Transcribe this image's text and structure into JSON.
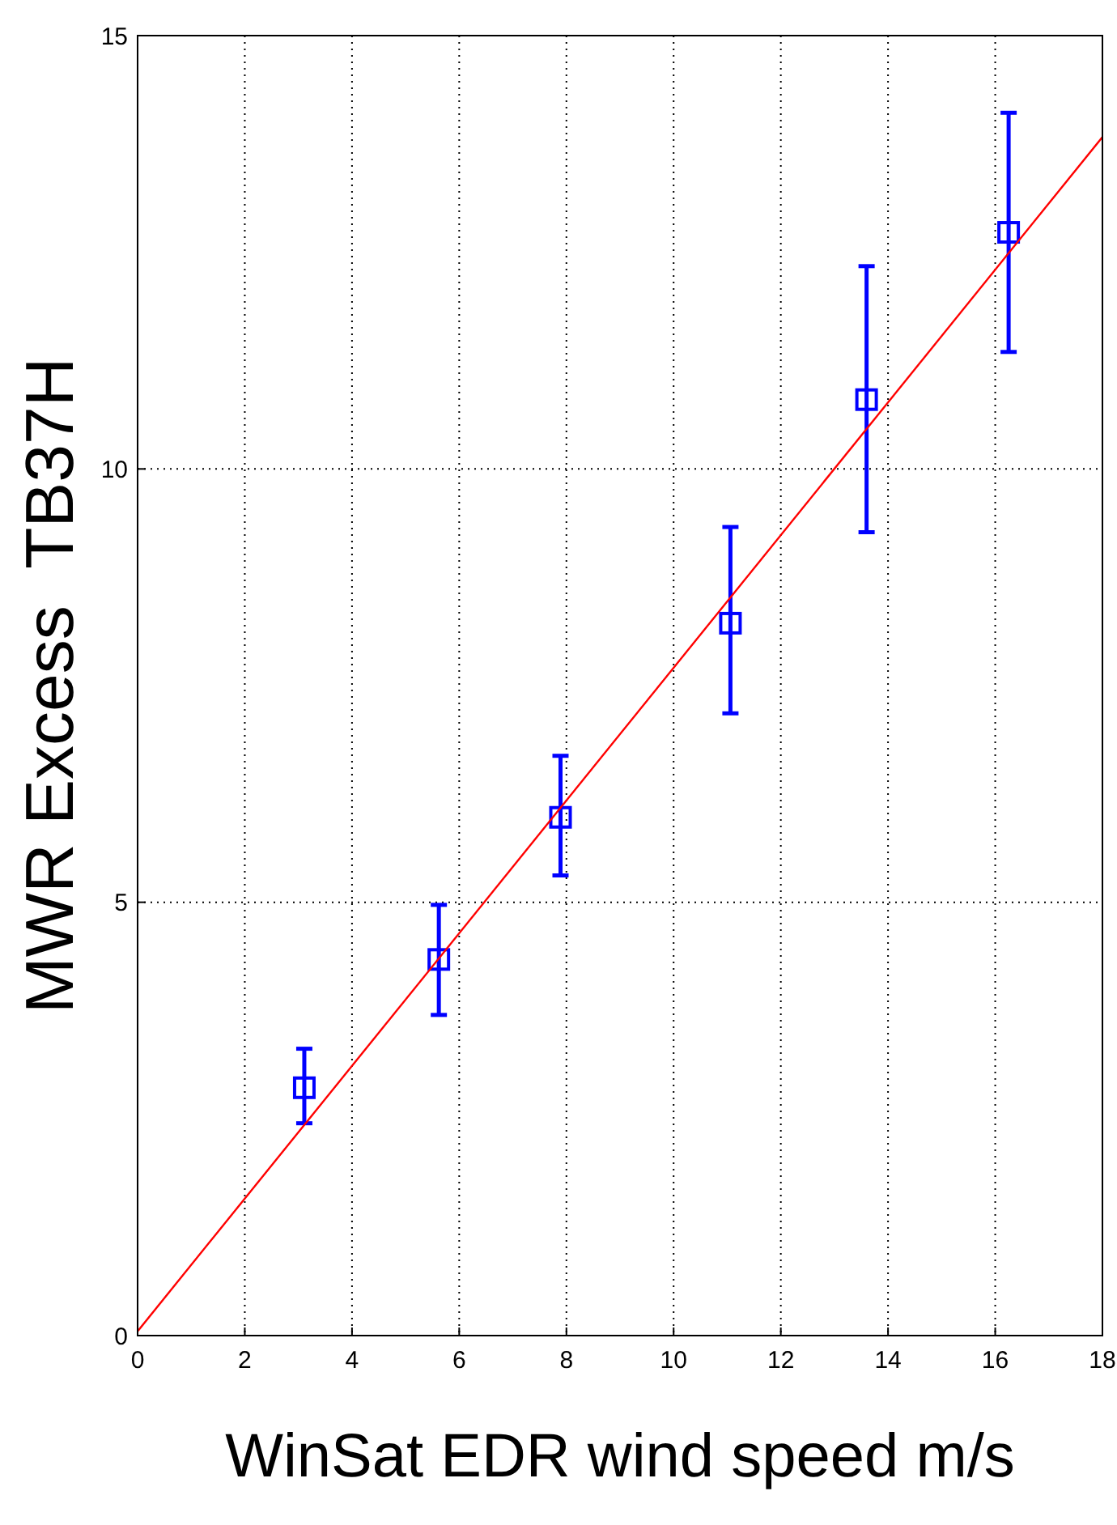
{
  "chart_data": {
    "type": "scatter",
    "xlabel": "WinSat EDR wind speed m/s",
    "ylabel": "MWR Excess  TB37H",
    "xlim": [
      0,
      18
    ],
    "xticks": [
      0,
      2,
      4,
      6,
      8,
      10,
      12,
      14,
      16,
      18
    ],
    "ylim": [
      0,
      15
    ],
    "yticks": [
      0,
      5,
      10,
      15
    ],
    "grid": true,
    "marker": "square",
    "series": [
      {
        "color": "#0000ff",
        "x": [
          3.11,
          5.62,
          7.89,
          11.06,
          13.6,
          16.25
        ],
        "values": [
          2.86,
          4.34,
          5.98,
          8.22,
          10.8,
          12.73
        ],
        "errors": [
          [
            2.45,
            3.31
          ],
          [
            3.7,
            4.97
          ],
          [
            5.31,
            6.69
          ],
          [
            7.18,
            9.33
          ],
          [
            9.27,
            12.34
          ],
          [
            11.35,
            14.11
          ]
        ]
      },
      {
        "type": "line",
        "color": "#ff0000",
        "x": [
          0,
          18
        ],
        "values": [
          0.05,
          13.83
        ],
        "marker": "none",
        "line_style": "solid"
      }
    ]
  }
}
